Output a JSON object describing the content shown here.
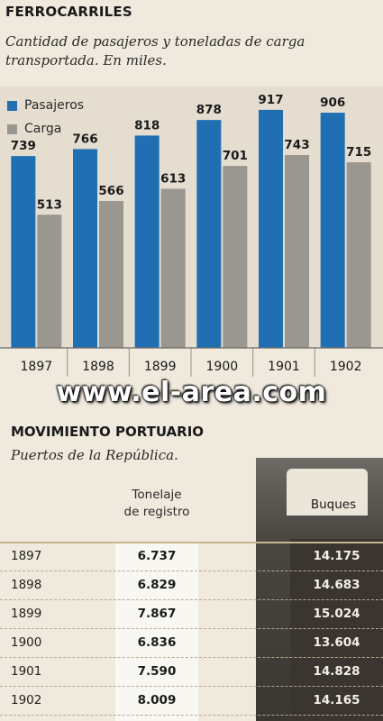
{
  "section1": {
    "title": "FERROCARRILES",
    "subtitle": "Cantidad de pasajeros y toneladas de carga transportada. En miles."
  },
  "chart_data": {
    "type": "bar",
    "categories": [
      "1897",
      "1898",
      "1899",
      "1900",
      "1901",
      "1902"
    ],
    "series": [
      {
        "name": "Pasajeros",
        "values": [
          739,
          766,
          818,
          878,
          917,
          906
        ],
        "color": "#1f6fb2"
      },
      {
        "name": "Carga",
        "values": [
          513,
          566,
          613,
          701,
          743,
          715
        ],
        "color": "#9a9690"
      }
    ],
    "ylim": [
      0,
      1000
    ],
    "grid": false,
    "legend": "top-left",
    "data_labels": true
  },
  "watermark": "www.el-area.com",
  "section2": {
    "title": "MOVIMIENTO PORTUARIO",
    "subtitle": "Puertos de la República.",
    "col_tonelaje_line1": "Tonelaje",
    "col_tonelaje_line2": "de registro",
    "col_buques": "Buques",
    "rows": [
      {
        "year": "1897",
        "tonelaje": "6.737",
        "buques": "14.175"
      },
      {
        "year": "1898",
        "tonelaje": "6.829",
        "buques": "14.683"
      },
      {
        "year": "1899",
        "tonelaje": "7.867",
        "buques": "15.024"
      },
      {
        "year": "1900",
        "tonelaje": "6.836",
        "buques": "13.604"
      },
      {
        "year": "1901",
        "tonelaje": "7.590",
        "buques": "14.828"
      },
      {
        "year": "1902",
        "tonelaje": "8.009",
        "buques": "14.165"
      }
    ]
  }
}
